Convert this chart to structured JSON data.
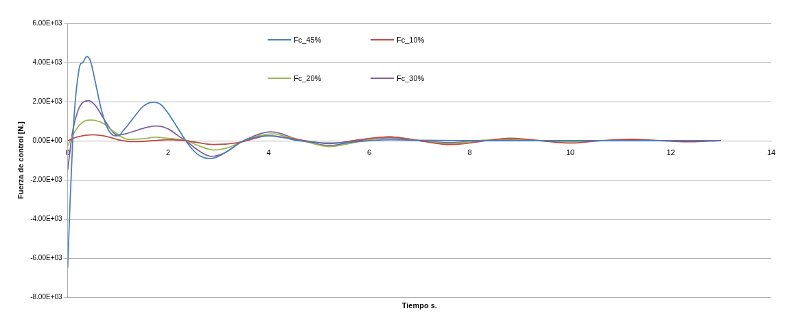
{
  "chart_data": {
    "type": "line",
    "xlabel": "Tiempo s.",
    "ylabel": "Fuerza de control [N.]",
    "xlim": [
      0,
      14
    ],
    "xticks": [
      0,
      2,
      4,
      6,
      8,
      10,
      12,
      14
    ],
    "ylim": [
      -8000,
      6000
    ],
    "yticks": [
      {
        "value": -8000,
        "label": "-8.00E+03"
      },
      {
        "value": -6000,
        "label": "-6.00E+03"
      },
      {
        "value": -4000,
        "label": "-4.00E+03"
      },
      {
        "value": -2000,
        "label": "-2.00E+03"
      },
      {
        "value": 0,
        "label": "0.00E+00"
      },
      {
        "value": 2000,
        "label": "2.00E+03"
      },
      {
        "value": 4000,
        "label": "4.00E+03"
      },
      {
        "value": 6000,
        "label": "6.00E+03"
      }
    ],
    "grid": "y",
    "legend": "top",
    "marker": "none",
    "line_style": "solid",
    "series": [
      {
        "name": "Fc_45%",
        "color": "#4a7ebb",
        "x": [
          0,
          0.05,
          0.1,
          0.15,
          0.2,
          0.25,
          0.3,
          0.38,
          0.45,
          0.55,
          0.65,
          0.75,
          0.85,
          0.95,
          1.02,
          1.1,
          1.2,
          1.35,
          1.5,
          1.7,
          1.85,
          2.0,
          2.2,
          2.35,
          2.5,
          2.65,
          2.82,
          3.0,
          3.2,
          3.5,
          3.8,
          4.0,
          4.3,
          4.6,
          5.0,
          5.2,
          5.6,
          6.0,
          6.4,
          7.0,
          8.0,
          9.0,
          10.0,
          11.0,
          12.0,
          13.0
        ],
        "values": [
          -6500,
          -3000,
          0,
          2000,
          3200,
          3900,
          4000,
          4300,
          4100,
          3000,
          1800,
          900,
          400,
          250,
          250,
          500,
          800,
          1300,
          1750,
          1970,
          1850,
          1400,
          600,
          0,
          -500,
          -800,
          -920,
          -800,
          -500,
          0,
          200,
          250,
          150,
          0,
          -100,
          -120,
          -80,
          0,
          50,
          20,
          0,
          0,
          0,
          0,
          0,
          0
        ]
      },
      {
        "name": "Fc_10%",
        "color": "#be4b48",
        "x": [
          0,
          0.2,
          0.5,
          0.8,
          1.0,
          1.3,
          1.7,
          2.0,
          2.35,
          2.9,
          3.4,
          4.0,
          4.6,
          5.2,
          5.8,
          6.4,
          7.0,
          7.6,
          8.2,
          8.8,
          9.4,
          10.0,
          10.6,
          11.2,
          11.8,
          12.3,
          13.0
        ],
        "values": [
          0,
          200,
          300,
          200,
          50,
          -50,
          0,
          50,
          0,
          -200,
          -100,
          250,
          50,
          -150,
          50,
          200,
          0,
          -200,
          -50,
          130,
          0,
          -120,
          0,
          70,
          0,
          -60,
          0
        ]
      },
      {
        "name": "Fc_20%",
        "color": "#98b954",
        "x": [
          0,
          0.15,
          0.3,
          0.45,
          0.7,
          0.9,
          1.2,
          1.5,
          1.75,
          2.0,
          2.35,
          2.6,
          2.91,
          3.2,
          3.5,
          4.05,
          4.6,
          5.2,
          5.8,
          6.4,
          7.0,
          7.6,
          8.2,
          8.8,
          9.4,
          10.0,
          10.6
        ],
        "values": [
          -270,
          500,
          950,
          1060,
          900,
          500,
          70,
          100,
          180,
          120,
          0,
          -250,
          -480,
          -350,
          0,
          350,
          50,
          -300,
          -50,
          200,
          0,
          -150,
          0,
          80,
          0,
          -60,
          0
        ]
      },
      {
        "name": "Fc_30%",
        "color": "#7d60a0",
        "x": [
          0,
          0.1,
          0.2,
          0.3,
          0.42,
          0.55,
          0.7,
          0.85,
          0.98,
          1.15,
          1.4,
          1.6,
          1.77,
          2.0,
          2.2,
          2.35,
          2.6,
          2.85,
          3.1,
          3.5,
          4.05,
          4.6,
          5.2,
          5.8,
          6.4,
          7.0,
          7.6,
          8.2,
          8.8,
          9.4,
          10.0,
          11.0,
          12.0,
          13.0
        ],
        "values": [
          -1500,
          500,
          1500,
          1950,
          2050,
          1800,
          1200,
          600,
          300,
          350,
          550,
          700,
          750,
          600,
          250,
          0,
          -500,
          -800,
          -650,
          0,
          450,
          50,
          -250,
          0,
          150,
          0,
          -100,
          0,
          50,
          0,
          0,
          0,
          0,
          0
        ]
      }
    ]
  }
}
